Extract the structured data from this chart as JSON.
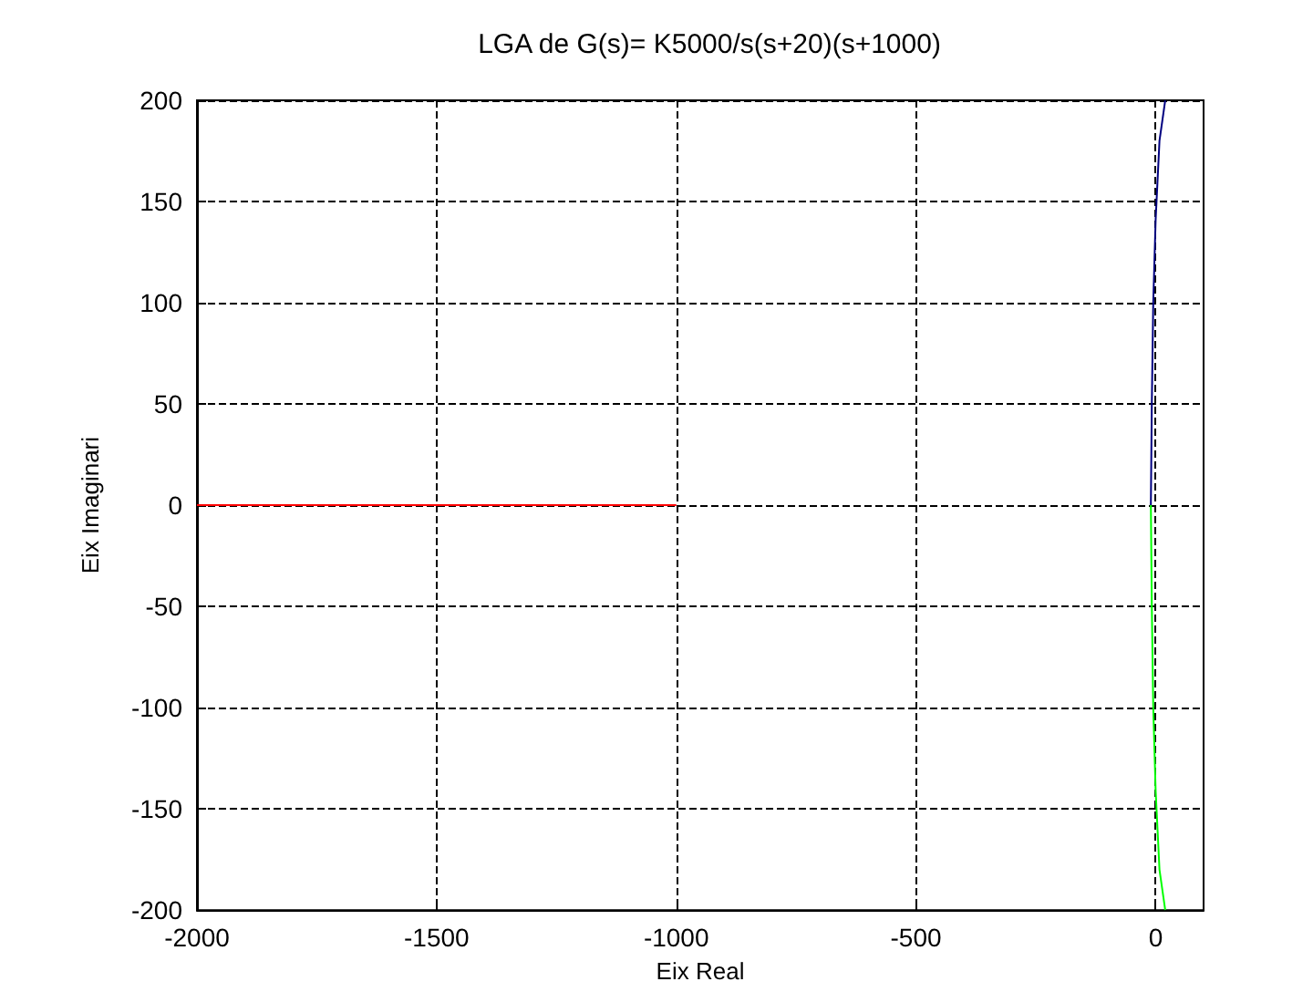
{
  "chart_data": {
    "type": "line",
    "title": "LGA de G(s)= K5000/s(s+20)(s+1000)",
    "xlabel": "Eix Real",
    "ylabel": "Eix Imaginari",
    "series": [
      {
        "color": "#ff0000",
        "x": [
          -2000,
          -1000
        ],
        "values": [
          0,
          0
        ]
      },
      {
        "color": "#000080",
        "x": [
          -10,
          -8,
          -5,
          0,
          8,
          20
        ],
        "values": [
          0,
          50,
          100,
          141,
          180,
          200
        ]
      },
      {
        "color": "#00ff00",
        "x": [
          -10,
          -8,
          -5,
          0,
          8,
          20
        ],
        "values": [
          0,
          -50,
          -100,
          -141,
          -180,
          -200
        ]
      }
    ],
    "xlim": [
      -2000,
      100
    ],
    "xticks": [
      -2000,
      -1500,
      -1000,
      -500,
      0
    ],
    "ylim": [
      -200,
      200
    ],
    "yticks": [
      -200,
      -150,
      -100,
      -50,
      0,
      50,
      100,
      150,
      200
    ],
    "grid": true,
    "line_style": "solid",
    "marker": "none"
  }
}
